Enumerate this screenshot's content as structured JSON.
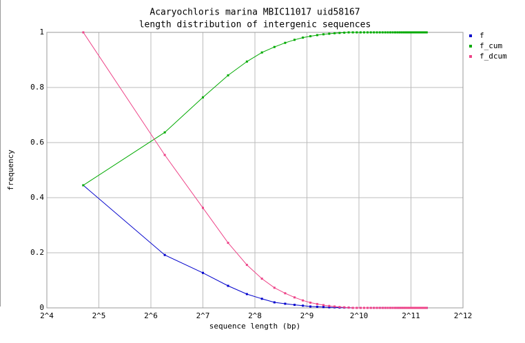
{
  "chart_data": {
    "type": "line",
    "title": "Acaryochloris marina MBIC11017 uid58167",
    "subtitle": "length distribution of intergenic sequences",
    "xlabel": "sequence length (bp)",
    "ylabel": "frequency",
    "xlog": true,
    "grid": true,
    "legend": "right",
    "xlim": [
      16,
      4096
    ],
    "xticks": [
      {
        "value": 16,
        "label": "2^4"
      },
      {
        "value": 32,
        "label": "2^5"
      },
      {
        "value": 64,
        "label": "2^6"
      },
      {
        "value": 128,
        "label": "2^7"
      },
      {
        "value": 256,
        "label": "2^8"
      },
      {
        "value": 512,
        "label": "2^9"
      },
      {
        "value": 1024,
        "label": "2^10"
      },
      {
        "value": 2048,
        "label": "2^11"
      },
      {
        "value": 4096,
        "label": "2^12"
      }
    ],
    "ylim": [
      0,
      1
    ],
    "yticks": [
      0,
      0.2,
      0.4,
      0.6,
      0.8,
      1
    ],
    "x": [
      26,
      77,
      128,
      179,
      230,
      281,
      332,
      383,
      434,
      485,
      536,
      587,
      638,
      689,
      740,
      791,
      842,
      893,
      944,
      995,
      1046,
      1097,
      1148,
      1199,
      1250,
      1301,
      1352,
      1403,
      1454,
      1505,
      1556,
      1607,
      1658,
      1709,
      1760,
      1811,
      1862,
      1913,
      1964,
      2015,
      2066,
      2117,
      2168,
      2219,
      2270,
      2321,
      2372,
      2423,
      2474,
      2525
    ],
    "series": [
      {
        "name": "f",
        "color": "#0000cc",
        "values": [
          0.445,
          0.192,
          0.127,
          0.08,
          0.05,
          0.033,
          0.02,
          0.015,
          0.011,
          0.008,
          0.005,
          0.004,
          0.003,
          0.002,
          0.002,
          0.001,
          0.001,
          0.001,
          0,
          0,
          0,
          0,
          0,
          0,
          0,
          0,
          0,
          0,
          0,
          0,
          0,
          0,
          0,
          0,
          0,
          0,
          0,
          0,
          0,
          0,
          0,
          0,
          0,
          0,
          0,
          0,
          0,
          0,
          0,
          0
        ]
      },
      {
        "name": "f_cum",
        "color": "#00aa00",
        "values": [
          0.445,
          0.637,
          0.764,
          0.844,
          0.894,
          0.927,
          0.947,
          0.962,
          0.973,
          0.981,
          0.986,
          0.99,
          0.993,
          0.995,
          0.997,
          0.998,
          0.999,
          1,
          1,
          1,
          1,
          1,
          1,
          1,
          1,
          1,
          1,
          1,
          1,
          1,
          1,
          1,
          1,
          1,
          1,
          1,
          1,
          1,
          1,
          1,
          1,
          1,
          1,
          1,
          1,
          1,
          1,
          1,
          1,
          1
        ]
      },
      {
        "name": "f_dcum",
        "color": "#ee4488",
        "values": [
          1,
          0.555,
          0.363,
          0.236,
          0.156,
          0.106,
          0.073,
          0.053,
          0.038,
          0.027,
          0.019,
          0.014,
          0.01,
          0.007,
          0.005,
          0.003,
          0.002,
          0.001,
          0,
          0,
          0,
          0,
          0,
          0,
          0,
          0,
          0,
          0,
          0,
          0,
          0,
          0,
          0,
          0,
          0,
          0,
          0,
          0,
          0,
          0,
          0,
          0,
          0,
          0,
          0,
          0,
          0,
          0,
          0,
          0
        ]
      }
    ]
  }
}
